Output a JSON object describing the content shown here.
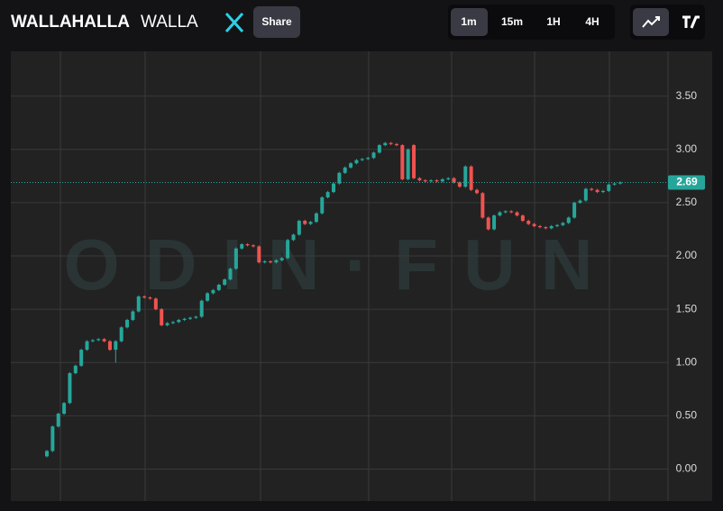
{
  "header": {
    "title": "WALLAHALLA",
    "ticker": "WALLA",
    "share": "Share",
    "intervals": [
      "1m",
      "15m",
      "1H",
      "4H"
    ],
    "active_interval": 0
  },
  "chart_data": {
    "type": "candlestick",
    "watermark": "ODIN·FUN",
    "up_color": "#26a69a",
    "down_color": "#ef5350",
    "ylim": [
      -0.3,
      3.92
    ],
    "yticks": [
      {
        "value": 0,
        "label": "0.00"
      },
      {
        "value": 0.5,
        "label": "0.50"
      },
      {
        "value": 1,
        "label": "1.00"
      },
      {
        "value": 1.5,
        "label": "1.50"
      },
      {
        "value": 2,
        "label": "2.00"
      },
      {
        "value": 2.5,
        "label": "2.50"
      },
      {
        "value": 3,
        "label": "3.00"
      },
      {
        "value": 3.5,
        "label": "3.50"
      }
    ],
    "grid": true,
    "last_price": 2.69,
    "open": [
      0.12,
      0.17,
      0.4,
      0.52,
      0.62,
      0.9,
      0.97,
      1.12,
      1.2,
      1.21,
      1.22,
      1.2,
      1.12,
      1.2,
      1.33,
      1.4,
      1.48,
      1.62,
      1.61,
      1.6,
      1.5,
      1.35,
      1.37,
      1.38,
      1.4,
      1.41,
      1.42,
      1.43,
      1.58,
      1.65,
      1.68,
      1.73,
      1.78,
      1.88,
      2.07,
      2.11,
      2.1,
      2.09,
      1.94,
      1.95,
      1.94,
      1.96,
      1.98,
      2.15,
      2.2,
      2.33,
      2.3,
      2.32,
      2.4,
      2.55,
      2.6,
      2.68,
      2.78,
      2.83,
      2.87,
      2.9,
      2.91,
      2.92,
      2.97,
      3.04,
      3.06,
      3.05,
      3.04,
      2.72,
      3.04,
      2.73,
      2.71,
      2.7,
      2.71,
      2.7,
      2.72,
      2.73,
      2.69,
      2.65,
      2.84,
      2.62,
      2.59,
      2.36,
      2.25,
      2.38,
      2.41,
      2.42,
      2.41,
      2.38,
      2.33,
      2.3,
      2.28,
      2.27,
      2.26,
      2.28,
      2.29,
      2.31,
      2.36,
      2.5,
      2.52,
      2.63,
      2.62,
      2.6,
      2.61,
      2.67,
      2.68
    ],
    "high": [
      0.18,
      0.41,
      0.53,
      0.63,
      0.91,
      0.98,
      1.13,
      1.21,
      1.22,
      1.23,
      1.23,
      1.21,
      1.21,
      1.34,
      1.41,
      1.49,
      1.63,
      1.63,
      1.62,
      1.61,
      1.51,
      1.38,
      1.39,
      1.41,
      1.42,
      1.43,
      1.44,
      1.59,
      1.66,
      1.69,
      1.74,
      1.79,
      1.89,
      2.08,
      2.12,
      2.12,
      2.11,
      2.1,
      1.96,
      1.96,
      1.97,
      1.99,
      2.16,
      2.21,
      2.34,
      2.34,
      2.33,
      2.41,
      2.56,
      2.61,
      2.69,
      2.79,
      2.84,
      2.88,
      2.91,
      2.92,
      2.93,
      2.98,
      3.05,
      3.07,
      3.07,
      3.06,
      3.05,
      3.01,
      3.05,
      2.74,
      2.72,
      2.72,
      2.72,
      2.73,
      2.74,
      2.74,
      2.7,
      2.85,
      2.85,
      2.63,
      2.6,
      2.37,
      2.39,
      2.42,
      2.43,
      2.43,
      2.42,
      2.39,
      2.34,
      2.31,
      2.29,
      2.28,
      2.29,
      2.3,
      2.32,
      2.37,
      2.51,
      2.53,
      2.64,
      2.64,
      2.63,
      2.62,
      2.68,
      2.69,
      2.7
    ],
    "low": [
      0.11,
      0.16,
      0.39,
      0.51,
      0.61,
      0.89,
      0.96,
      1.11,
      1.19,
      1.2,
      1.19,
      1.11,
      1.0,
      1.19,
      1.32,
      1.39,
      1.47,
      1.6,
      1.59,
      1.49,
      1.34,
      1.34,
      1.36,
      1.37,
      1.39,
      1.4,
      1.41,
      1.42,
      1.57,
      1.64,
      1.67,
      1.72,
      1.77,
      1.87,
      2.06,
      2.09,
      2.08,
      1.93,
      1.93,
      1.93,
      1.93,
      1.95,
      1.97,
      2.14,
      2.19,
      2.29,
      2.29,
      2.31,
      2.39,
      2.54,
      2.59,
      2.67,
      2.77,
      2.82,
      2.86,
      2.89,
      2.9,
      2.91,
      2.96,
      3.03,
      3.04,
      3.03,
      2.71,
      2.71,
      2.72,
      2.7,
      2.69,
      2.69,
      2.69,
      2.69,
      2.71,
      2.68,
      2.64,
      2.64,
      2.61,
      2.58,
      2.35,
      2.24,
      2.24,
      2.37,
      2.4,
      2.4,
      2.37,
      2.32,
      2.29,
      2.27,
      2.26,
      2.25,
      2.25,
      2.27,
      2.28,
      2.3,
      2.35,
      2.49,
      2.51,
      2.61,
      2.59,
      2.59,
      2.6,
      2.66,
      2.67
    ],
    "close": [
      0.17,
      0.4,
      0.52,
      0.62,
      0.9,
      0.97,
      1.12,
      1.2,
      1.21,
      1.22,
      1.2,
      1.12,
      1.2,
      1.33,
      1.4,
      1.48,
      1.62,
      1.61,
      1.6,
      1.5,
      1.35,
      1.37,
      1.38,
      1.4,
      1.41,
      1.42,
      1.43,
      1.58,
      1.65,
      1.68,
      1.73,
      1.78,
      1.88,
      2.07,
      2.11,
      2.1,
      2.09,
      1.94,
      1.95,
      1.94,
      1.96,
      1.98,
      2.15,
      2.2,
      2.33,
      2.3,
      2.32,
      2.4,
      2.55,
      2.6,
      2.68,
      2.78,
      2.83,
      2.87,
      2.9,
      2.91,
      2.92,
      2.97,
      3.04,
      3.06,
      3.05,
      3.04,
      2.72,
      3.0,
      2.73,
      2.71,
      2.7,
      2.71,
      2.7,
      2.72,
      2.73,
      2.69,
      2.65,
      2.84,
      2.62,
      2.59,
      2.36,
      2.25,
      2.38,
      2.41,
      2.42,
      2.41,
      2.38,
      2.33,
      2.3,
      2.28,
      2.27,
      2.26,
      2.28,
      2.29,
      2.31,
      2.36,
      2.5,
      2.52,
      2.63,
      2.62,
      2.6,
      2.61,
      2.67,
      2.68,
      2.69
    ]
  }
}
